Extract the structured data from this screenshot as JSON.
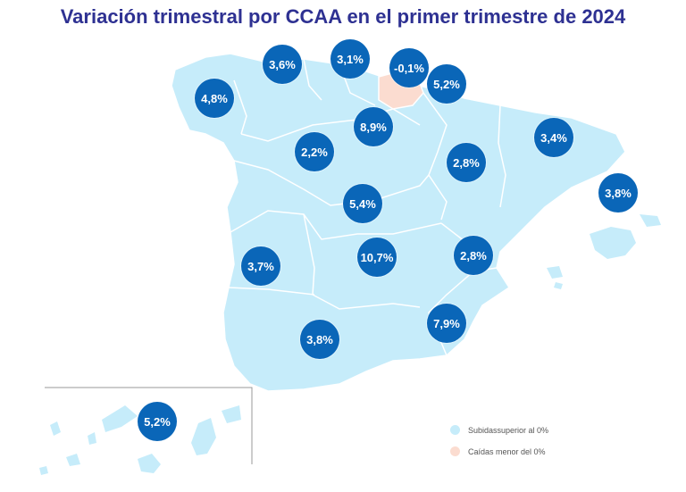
{
  "title": "Variación trimestral por CCAA en el primer trimestre de 2024",
  "colors": {
    "title": "#2e3192",
    "positive_fill": "#c6ecfa",
    "negative_fill": "#fbdcd0",
    "bubble": "#0a66b8",
    "border": "#ffffff"
  },
  "regions": [
    {
      "name": "Galicia",
      "value": "4,8%"
    },
    {
      "name": "Asturias",
      "value": "3,6%"
    },
    {
      "name": "Cantabria",
      "value": "3,1%"
    },
    {
      "name": "País Vasco",
      "value": "-0,1%"
    },
    {
      "name": "Navarra",
      "value": "5,2%"
    },
    {
      "name": "La Rioja",
      "value": "8,9%"
    },
    {
      "name": "Castilla y León",
      "value": "2,2%"
    },
    {
      "name": "Aragón",
      "value": "2,8%"
    },
    {
      "name": "Cataluña",
      "value": "3,4%"
    },
    {
      "name": "Islas Baleares",
      "value": "3,8%"
    },
    {
      "name": "Madrid",
      "value": "5,4%"
    },
    {
      "name": "Extremadura",
      "value": "3,7%"
    },
    {
      "name": "Castilla-La Mancha",
      "value": "10,7%"
    },
    {
      "name": "C. Valenciana",
      "value": "2,8%"
    },
    {
      "name": "Murcia",
      "value": "7,9%"
    },
    {
      "name": "Andalucía",
      "value": "3,8%"
    },
    {
      "name": "Canarias",
      "value": "5,2%"
    }
  ],
  "legend": {
    "positive": "Subidassuperior al 0%",
    "negative": "Caídas menor del 0%"
  }
}
